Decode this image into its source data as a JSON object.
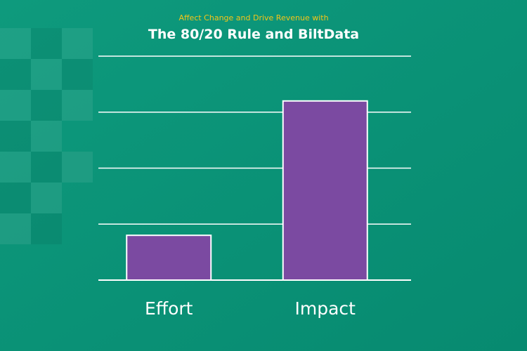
{
  "header": {
    "subtitle": "Affect Change and Drive Revenue with",
    "title": "The 80/20 Rule and BiltData"
  },
  "colors": {
    "background": "#0a9176",
    "bar": "#7b4aa1",
    "bar_border": "#ffffff",
    "grid": "#ffffff",
    "subtitle": "#f5c518",
    "title": "#ffffff",
    "category_label": "#ffffff"
  },
  "chart_data": {
    "type": "bar",
    "categories": [
      "Effort",
      "Impact"
    ],
    "values": [
      20,
      80
    ],
    "title": "The 80/20 Rule and BiltData",
    "xlabel": "",
    "ylabel": "",
    "ylim": [
      0,
      100
    ],
    "grid": true,
    "legend": "none"
  }
}
